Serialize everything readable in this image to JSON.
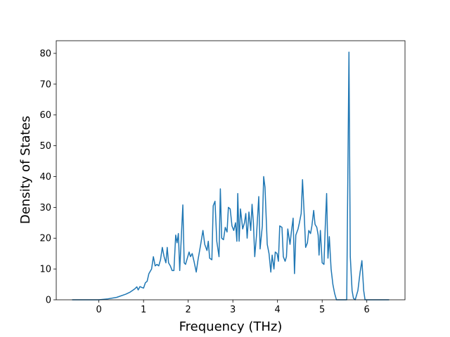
{
  "chart_data": {
    "type": "line",
    "xlabel": "Frequency (THz)",
    "ylabel": "Density of States",
    "color": "#1f77b4",
    "xlim": [
      -0.955,
      6.855
    ],
    "ylim": [
      0,
      84.1
    ],
    "xticks": [
      0,
      1,
      2,
      3,
      4,
      5,
      6
    ],
    "yticks": [
      0,
      10,
      20,
      30,
      40,
      50,
      60,
      70,
      80
    ],
    "x": [
      -0.6,
      0,
      0.2,
      0.4,
      0.6,
      0.7,
      0.8,
      0.85,
      0.88,
      0.92,
      0.96,
      1.0,
      1.04,
      1.08,
      1.12,
      1.18,
      1.22,
      1.26,
      1.3,
      1.34,
      1.38,
      1.42,
      1.46,
      1.5,
      1.53,
      1.56,
      1.6,
      1.64,
      1.68,
      1.72,
      1.75,
      1.78,
      1.81,
      1.88,
      1.91,
      1.94,
      1.99,
      2.02,
      2.05,
      2.09,
      2.13,
      2.18,
      2.22,
      2.28,
      2.33,
      2.37,
      2.42,
      2.45,
      2.48,
      2.53,
      2.56,
      2.6,
      2.64,
      2.69,
      2.72,
      2.75,
      2.79,
      2.83,
      2.87,
      2.9,
      2.94,
      2.98,
      3.02,
      3.06,
      3.09,
      3.11,
      3.14,
      3.17,
      3.22,
      3.26,
      3.29,
      3.32,
      3.36,
      3.4,
      3.43,
      3.46,
      3.49,
      3.53,
      3.58,
      3.61,
      3.66,
      3.69,
      3.72,
      3.77,
      3.81,
      3.85,
      3.88,
      3.92,
      3.95,
      3.99,
      4.02,
      4.05,
      4.1,
      4.13,
      4.17,
      4.2,
      4.23,
      4.28,
      4.31,
      4.35,
      4.38,
      4.41,
      4.46,
      4.49,
      4.53,
      4.56,
      4.6,
      4.63,
      4.67,
      4.7,
      4.74,
      4.77,
      4.81,
      4.84,
      4.88,
      4.91,
      4.93,
      4.96,
      5.0,
      5.04,
      5.07,
      5.1,
      5.13,
      5.16,
      5.2,
      5.24,
      5.28,
      5.32,
      5.55,
      5.6,
      5.63,
      5.67,
      5.7,
      5.74,
      5.8,
      5.85,
      5.89,
      5.93,
      5.96,
      6.5
    ],
    "values": [
      0,
      0,
      0.3,
      0.8,
      1.8,
      2.5,
      3.5,
      4.2,
      3.2,
      4.3,
      4.0,
      3.8,
      5.5,
      6,
      8.5,
      10,
      14,
      11,
      11.5,
      11,
      13,
      17,
      14,
      12,
      17,
      12,
      11,
      9.5,
      9.5,
      21,
      18.5,
      21.5,
      9.5,
      30.8,
      12,
      11.5,
      14,
      15.5,
      14,
      15,
      12.5,
      9,
      13,
      18,
      22.5,
      18,
      16,
      19,
      13.5,
      13,
      30.5,
      32,
      19,
      14,
      36,
      20,
      19.5,
      23.5,
      22,
      30,
      29.5,
      24,
      22.5,
      25,
      19,
      34.5,
      19,
      29.5,
      23,
      25,
      28,
      20,
      28.5,
      22.5,
      31,
      25,
      14,
      21,
      33.5,
      16.5,
      24,
      40,
      36.5,
      18,
      15,
      9,
      14.5,
      10,
      15.5,
      15,
      12.5,
      24,
      23.5,
      14,
      12.5,
      14,
      23,
      18,
      22,
      26.5,
      8.5,
      21,
      23,
      25,
      28,
      39,
      27,
      17,
      18.5,
      22.5,
      21.5,
      24,
      29,
      24.5,
      23.5,
      21,
      14.5,
      22.5,
      12,
      11.5,
      24,
      34.5,
      13.5,
      20.5,
      10,
      5,
      2,
      0,
      0,
      80.4,
      14,
      3,
      0.5,
      0,
      3,
      9,
      12.7,
      3,
      0,
      0
    ]
  }
}
